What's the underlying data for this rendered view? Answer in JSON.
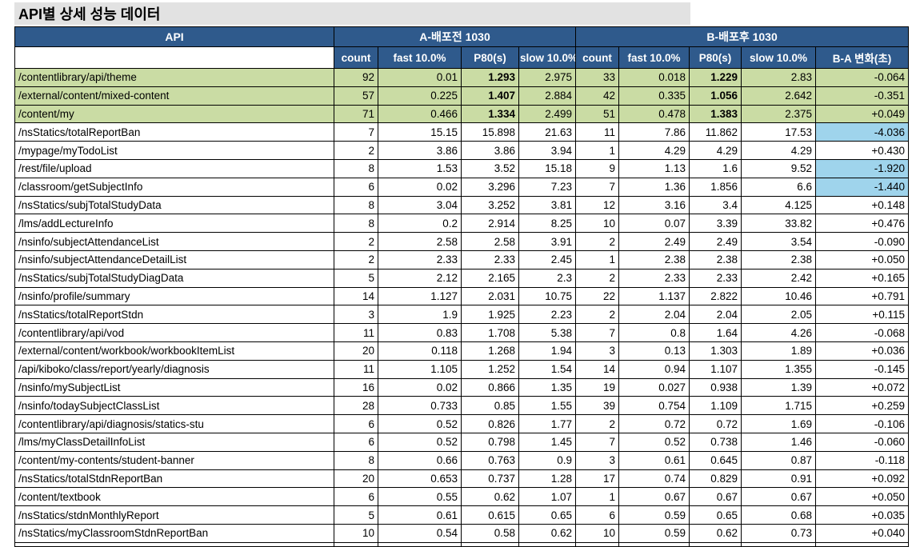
{
  "title": "API별 상세 성능 데이터",
  "colors": {
    "header_bg": "#2F5A8C",
    "header_text": "#FFFFFF",
    "green_row_bg": "#CADCA4",
    "delta_highlight_bg": "#9FD4EC",
    "title_bar_bg": "#E2E2E2",
    "grid_border": "#000000"
  },
  "table": {
    "api_header": "API",
    "group_a_header": "A-배포전 1030",
    "group_b_header": "B-배포후 1030",
    "sub_headers": [
      "count",
      "fast 10.0%",
      "P80(s)",
      "slow 10.0%",
      "count",
      "fast 10.0%",
      "P80(s)",
      "slow 10.0%",
      "B-A 변화(초)"
    ],
    "rows": [
      {
        "api": "/contentlibrary/api/theme",
        "a": [
          "92",
          "0.01",
          "1.293",
          "2.975"
        ],
        "b": [
          "33",
          "0.018",
          "1.229",
          "2.83"
        ],
        "delta": "-0.064",
        "row_style": "green",
        "delta_style": ""
      },
      {
        "api": "/external/content/mixed-content",
        "a": [
          "57",
          "0.225",
          "1.407",
          "2.884"
        ],
        "b": [
          "42",
          "0.335",
          "1.056",
          "2.642"
        ],
        "delta": "-0.351",
        "row_style": "green",
        "delta_style": ""
      },
      {
        "api": "/content/my",
        "a": [
          "71",
          "0.466",
          "1.334",
          "2.499"
        ],
        "b": [
          "51",
          "0.478",
          "1.383",
          "2.375"
        ],
        "delta": "+0.049",
        "row_style": "green",
        "delta_style": ""
      },
      {
        "api": "/nsStatics/totalReportBan",
        "a": [
          "7",
          "15.15",
          "15.898",
          "21.63"
        ],
        "b": [
          "11",
          "7.86",
          "11.862",
          "17.53"
        ],
        "delta": "-4.036",
        "row_style": "",
        "delta_style": "blue"
      },
      {
        "api": "/mypage/myTodoList",
        "a": [
          "2",
          "3.86",
          "3.86",
          "3.94"
        ],
        "b": [
          "1",
          "4.29",
          "4.29",
          "4.29"
        ],
        "delta": "+0.430",
        "row_style": "",
        "delta_style": ""
      },
      {
        "api": "/rest/file/upload",
        "a": [
          "8",
          "1.53",
          "3.52",
          "15.18"
        ],
        "b": [
          "9",
          "1.13",
          "1.6",
          "9.52"
        ],
        "delta": "-1.920",
        "row_style": "",
        "delta_style": "blue"
      },
      {
        "api": "/classroom/getSubjectInfo",
        "a": [
          "6",
          "0.02",
          "3.296",
          "7.23"
        ],
        "b": [
          "7",
          "1.36",
          "1.856",
          "6.6"
        ],
        "delta": "-1.440",
        "row_style": "",
        "delta_style": "blue"
      },
      {
        "api": "/nsStatics/subjTotalStudyData",
        "a": [
          "8",
          "3.04",
          "3.252",
          "3.81"
        ],
        "b": [
          "12",
          "3.16",
          "3.4",
          "4.125"
        ],
        "delta": "+0.148",
        "row_style": "",
        "delta_style": ""
      },
      {
        "api": "/lms/addLectureInfo",
        "a": [
          "8",
          "0.2",
          "2.914",
          "8.25"
        ],
        "b": [
          "10",
          "0.07",
          "3.39",
          "33.82"
        ],
        "delta": "+0.476",
        "row_style": "",
        "delta_style": ""
      },
      {
        "api": "/nsinfo/subjectAttendanceList",
        "a": [
          "2",
          "2.58",
          "2.58",
          "3.91"
        ],
        "b": [
          "2",
          "2.49",
          "2.49",
          "3.54"
        ],
        "delta": "-0.090",
        "row_style": "",
        "delta_style": ""
      },
      {
        "api": "/nsinfo/subjectAttendanceDetailList",
        "a": [
          "2",
          "2.33",
          "2.33",
          "2.45"
        ],
        "b": [
          "1",
          "2.38",
          "2.38",
          "2.38"
        ],
        "delta": "+0.050",
        "row_style": "",
        "delta_style": ""
      },
      {
        "api": "/nsStatics/subjTotalStudyDiagData",
        "a": [
          "5",
          "2.12",
          "2.165",
          "2.3"
        ],
        "b": [
          "2",
          "2.33",
          "2.33",
          "2.42"
        ],
        "delta": "+0.165",
        "row_style": "",
        "delta_style": ""
      },
      {
        "api": "/nsinfo/profile/summary",
        "a": [
          "14",
          "1.127",
          "2.031",
          "10.75"
        ],
        "b": [
          "22",
          "1.137",
          "2.822",
          "10.46"
        ],
        "delta": "+0.791",
        "row_style": "",
        "delta_style": ""
      },
      {
        "api": "/nsStatics/totalReportStdn",
        "a": [
          "3",
          "1.9",
          "1.925",
          "2.23"
        ],
        "b": [
          "2",
          "2.04",
          "2.04",
          "2.05"
        ],
        "delta": "+0.115",
        "row_style": "",
        "delta_style": ""
      },
      {
        "api": "/contentlibrary/api/vod",
        "a": [
          "11",
          "0.83",
          "1.708",
          "5.38"
        ],
        "b": [
          "7",
          "0.8",
          "1.64",
          "4.26"
        ],
        "delta": "-0.068",
        "row_style": "",
        "delta_style": ""
      },
      {
        "api": "/external/content/workbook/workbookItemList",
        "a": [
          "20",
          "0.118",
          "1.268",
          "1.94"
        ],
        "b": [
          "3",
          "0.13",
          "1.303",
          "1.89"
        ],
        "delta": "+0.036",
        "row_style": "",
        "delta_style": ""
      },
      {
        "api": "/api/kiboko/class/report/yearly/diagnosis",
        "a": [
          "11",
          "1.105",
          "1.252",
          "1.54"
        ],
        "b": [
          "14",
          "0.94",
          "1.107",
          "1.355"
        ],
        "delta": "-0.145",
        "row_style": "",
        "delta_style": ""
      },
      {
        "api": "/nsinfo/mySubjectList",
        "a": [
          "16",
          "0.02",
          "0.866",
          "1.35"
        ],
        "b": [
          "19",
          "0.027",
          "0.938",
          "1.39"
        ],
        "delta": "+0.072",
        "row_style": "",
        "delta_style": ""
      },
      {
        "api": "/nsinfo/todaySubjectClassList",
        "a": [
          "28",
          "0.733",
          "0.85",
          "1.55"
        ],
        "b": [
          "39",
          "0.754",
          "1.109",
          "1.715"
        ],
        "delta": "+0.259",
        "row_style": "",
        "delta_style": ""
      },
      {
        "api": "/contentlibrary/api/diagnosis/statics-stu",
        "a": [
          "6",
          "0.52",
          "0.826",
          "1.77"
        ],
        "b": [
          "2",
          "0.72",
          "0.72",
          "1.69"
        ],
        "delta": "-0.106",
        "row_style": "",
        "delta_style": ""
      },
      {
        "api": "/lms/myClassDetailInfoList",
        "a": [
          "6",
          "0.52",
          "0.798",
          "1.45"
        ],
        "b": [
          "7",
          "0.52",
          "0.738",
          "1.46"
        ],
        "delta": "-0.060",
        "row_style": "",
        "delta_style": ""
      },
      {
        "api": "/content/my-contents/student-banner",
        "a": [
          "8",
          "0.66",
          "0.763",
          "0.9"
        ],
        "b": [
          "3",
          "0.61",
          "0.645",
          "0.87"
        ],
        "delta": "-0.118",
        "row_style": "",
        "delta_style": ""
      },
      {
        "api": "/nsStatics/totalStdnReportBan",
        "a": [
          "20",
          "0.653",
          "0.737",
          "1.28"
        ],
        "b": [
          "17",
          "0.74",
          "0.829",
          "0.91"
        ],
        "delta": "+0.092",
        "row_style": "",
        "delta_style": ""
      },
      {
        "api": "/content/textbook",
        "a": [
          "6",
          "0.55",
          "0.62",
          "1.07"
        ],
        "b": [
          "1",
          "0.67",
          "0.67",
          "0.67"
        ],
        "delta": "+0.050",
        "row_style": "",
        "delta_style": ""
      },
      {
        "api": "/nsStatics/stdnMonthlyReport",
        "a": [
          "5",
          "0.61",
          "0.615",
          "0.65"
        ],
        "b": [
          "6",
          "0.59",
          "0.65",
          "0.68"
        ],
        "delta": "+0.035",
        "row_style": "",
        "delta_style": ""
      },
      {
        "api": "/nsStatics/myClassroomStdnReportBan",
        "a": [
          "10",
          "0.54",
          "0.58",
          "0.62"
        ],
        "b": [
          "10",
          "0.59",
          "0.62",
          "0.73"
        ],
        "delta": "+0.040",
        "row_style": "",
        "delta_style": ""
      }
    ]
  }
}
